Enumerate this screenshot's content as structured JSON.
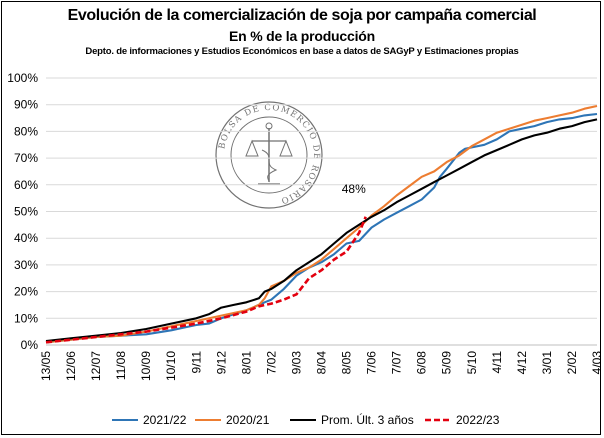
{
  "title": "Evolución de la comercialización de soja por campaña comercial",
  "subtitle": "En % de la producción",
  "source_note": "Depto. de informaciones y Estudios Económicos en base a datos de SAGyP y Estimaciones propias",
  "logo_text": "BOLSA DE COMERCIO DE ROSARIO",
  "annotation": "48%",
  "chart_data": {
    "type": "line",
    "ylim": [
      0,
      100
    ],
    "y_ticks": [
      "0%",
      "10%",
      "20%",
      "30%",
      "40%",
      "50%",
      "60%",
      "70%",
      "80%",
      "90%",
      "100%"
    ],
    "y_tick_values": [
      0,
      10,
      20,
      30,
      40,
      50,
      60,
      70,
      80,
      90,
      100
    ],
    "x_ticks": [
      "13/05",
      "12/06",
      "12/07",
      "11/08",
      "10/09",
      "10/10",
      "9/11",
      "9/12",
      "8/01",
      "7/02",
      "9/03",
      "8/04",
      "8/05",
      "7/06",
      "7/07",
      "6/08",
      "5/09",
      "5/10",
      "4/11",
      "4/12",
      "3/01",
      "2/02",
      "4/03"
    ],
    "x_tick_values": [
      0,
      30,
      60,
      90,
      120,
      150,
      180,
      210,
      240,
      270,
      300,
      330,
      360,
      390,
      420,
      450,
      480,
      510,
      540,
      570,
      600,
      630,
      660
    ],
    "x_unit": "days since 13/05",
    "grid": true,
    "legend_position": "bottom",
    "series": [
      {
        "name": "2021/22",
        "color": "#2E75B6",
        "dashed": false,
        "x": [
          0,
          30,
          60,
          90,
          120,
          150,
          165,
          180,
          195,
          210,
          225,
          240,
          255,
          262,
          270,
          285,
          300,
          315,
          330,
          345,
          360,
          375,
          390,
          405,
          420,
          435,
          450,
          465,
          472,
          480,
          495,
          502,
          510,
          525,
          540,
          555,
          570,
          585,
          600,
          615,
          630,
          645,
          660
        ],
        "y": [
          1,
          2,
          3,
          3.5,
          4,
          5.5,
          6.5,
          7.5,
          8,
          10,
          11.5,
          13,
          15,
          16,
          17,
          21,
          26,
          29,
          31,
          34,
          38,
          39,
          44,
          47,
          49.5,
          52,
          54.5,
          59,
          63,
          66,
          72,
          73.5,
          74,
          75,
          77,
          80,
          81,
          82,
          83.5,
          84.5,
          85,
          86,
          86.5
        ]
      },
      {
        "name": "2020/21",
        "color": "#ED7D31",
        "dashed": false,
        "x": [
          0,
          30,
          60,
          90,
          120,
          150,
          180,
          210,
          240,
          255,
          262,
          270,
          285,
          300,
          315,
          330,
          345,
          360,
          375,
          390,
          405,
          420,
          435,
          450,
          465,
          480,
          495,
          510,
          525,
          540,
          555,
          570,
          585,
          600,
          615,
          630,
          645,
          660
        ],
        "y": [
          1,
          2,
          3,
          3.5,
          5,
          7,
          9,
          11,
          13,
          15,
          17.5,
          22,
          24,
          27,
          29,
          32,
          36,
          40,
          44,
          48.5,
          52,
          56,
          59.5,
          63,
          65,
          68.5,
          71,
          74.5,
          77,
          79.5,
          81,
          82.5,
          84,
          85,
          86,
          87,
          88.5,
          89.5
        ]
      },
      {
        "name": "Prom. Últ. 3 años",
        "color": "#000000",
        "dashed": false,
        "x": [
          0,
          30,
          60,
          90,
          120,
          150,
          180,
          195,
          210,
          225,
          240,
          255,
          262,
          270,
          285,
          300,
          315,
          330,
          345,
          360,
          375,
          390,
          405,
          420,
          435,
          450,
          465,
          480,
          495,
          510,
          525,
          540,
          555,
          570,
          585,
          600,
          615,
          630,
          645,
          660
        ],
        "y": [
          1.5,
          2.5,
          3.5,
          4.5,
          6,
          8,
          10,
          11.5,
          14,
          15,
          16,
          17.5,
          20,
          21,
          24,
          28,
          31,
          34,
          38,
          42,
          45,
          48,
          50.5,
          53.5,
          56,
          58.5,
          61,
          63.5,
          66,
          68.5,
          71,
          73,
          75,
          77,
          78.5,
          79.5,
          81,
          82,
          83.5,
          84.5
        ]
      },
      {
        "name": "2022/23",
        "color": "#E3000F",
        "dashed": true,
        "x": [
          0,
          30,
          60,
          90,
          120,
          150,
          180,
          210,
          240,
          255,
          270,
          285,
          300,
          315,
          330,
          345,
          360,
          375,
          383
        ],
        "y": [
          1,
          2,
          3,
          4,
          5,
          6.5,
          8,
          10,
          12.5,
          14.5,
          15.5,
          17,
          19,
          25,
          28,
          32,
          35,
          42,
          48
        ]
      }
    ]
  }
}
